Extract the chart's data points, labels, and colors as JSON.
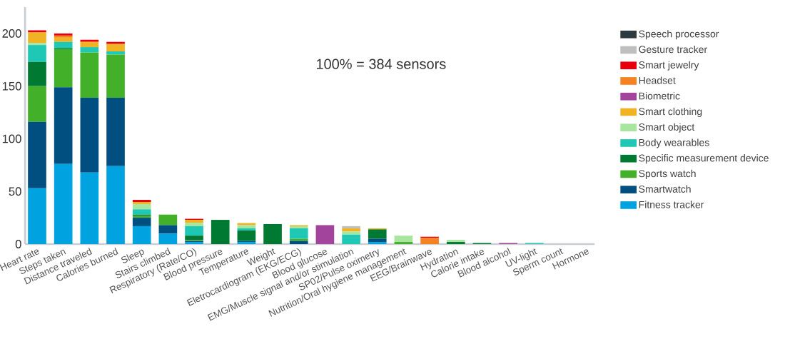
{
  "chart_data": {
    "type": "bar",
    "stacked": true,
    "categories": [
      "Heart rate",
      "Steps taken",
      "Distance traveled",
      "Calories burned",
      "Sleep",
      "Stairs climbed",
      "Respiratory (Rate/CO)",
      "Blood pressure",
      "Temperature",
      "Weight",
      "Eletrocardiogram (EKG/ECG)",
      "Blood glucose",
      "EMG/Muscle signal and/or stimulation",
      "SP02/Pulse oximetry",
      "Nutrition/Oral hygiene management",
      "EEG/Brainwave",
      "Hydration",
      "Calorie intake",
      "Blood alcohol",
      "UV-light",
      "Sperm count",
      "Hormone"
    ],
    "series": [
      {
        "name": "Fitness tracker",
        "color": "#00a3e0",
        "values": [
          53,
          76,
          68,
          74,
          17,
          10,
          2,
          0,
          2,
          0,
          0,
          0,
          0,
          2,
          0,
          0,
          0,
          0,
          0,
          0,
          0,
          0
        ]
      },
      {
        "name": "Smartwatch",
        "color": "#004f80",
        "values": [
          63,
          73,
          71,
          65,
          8,
          8,
          1,
          0,
          1,
          0,
          3,
          0,
          0,
          3,
          0,
          0,
          0,
          0,
          0,
          0,
          0,
          0
        ]
      },
      {
        "name": "Sports watch",
        "color": "#43b02a",
        "values": [
          34,
          36,
          43,
          41,
          2,
          10,
          1,
          0,
          0,
          0,
          2,
          0,
          0,
          0,
          2,
          0,
          0,
          0,
          0,
          0,
          0,
          0
        ]
      },
      {
        "name": "Specific measurement device",
        "color": "#007a33",
        "values": [
          23,
          1,
          0,
          0,
          1,
          0,
          4,
          23,
          10,
          19,
          0,
          0,
          0,
          9,
          0,
          0,
          2,
          1,
          0,
          0,
          0,
          0
        ]
      },
      {
        "name": "Body wearables",
        "color": "#1ec8b4",
        "values": [
          16,
          6,
          5,
          3,
          5,
          0,
          9,
          0,
          2,
          0,
          10,
          0,
          9,
          0,
          0,
          0,
          0,
          0,
          0,
          1,
          0,
          0
        ]
      },
      {
        "name": "Smart object",
        "color": "#a8e6a0",
        "values": [
          2,
          0,
          0,
          0,
          5,
          0,
          3,
          0,
          3,
          0,
          2,
          0,
          3,
          0,
          6,
          0,
          2,
          0,
          0,
          0,
          0,
          0
        ]
      },
      {
        "name": "Smart clothing",
        "color": "#f0b323",
        "values": [
          10,
          4,
          5,
          7,
          2,
          0,
          3,
          0,
          2,
          0,
          1,
          0,
          3,
          1,
          0,
          0,
          0,
          0,
          0,
          0,
          0,
          0
        ]
      },
      {
        "name": "Biometric",
        "color": "#a2449b",
        "values": [
          0,
          0,
          0,
          0,
          0,
          0,
          0,
          0,
          0,
          0,
          0,
          18,
          0,
          0,
          0,
          0,
          0,
          0,
          1,
          0,
          0,
          0
        ]
      },
      {
        "name": "Headset",
        "color": "#f58220",
        "values": [
          0,
          2,
          0,
          0,
          0,
          0,
          0,
          0,
          0,
          0,
          0,
          0,
          0,
          0,
          0,
          6,
          0,
          0,
          0,
          0,
          0,
          0
        ]
      },
      {
        "name": "Smart jewelry",
        "color": "#e8000d",
        "values": [
          2,
          2,
          2,
          2,
          2,
          0,
          1,
          0,
          0,
          0,
          0,
          0,
          0,
          0,
          0,
          1,
          0,
          0,
          0,
          0,
          0,
          0
        ]
      },
      {
        "name": "Gesture tracker",
        "color": "#bfbfbf",
        "values": [
          0,
          0,
          0,
          0,
          0,
          0,
          0,
          0,
          0,
          0,
          0,
          0,
          2,
          0,
          0,
          0,
          0,
          0,
          0,
          0,
          0,
          0
        ]
      },
      {
        "name": "Speech processor",
        "color": "#2d3a40",
        "values": [
          0,
          0,
          0,
          0,
          0,
          0,
          0,
          0,
          0,
          0,
          0,
          0,
          0,
          0,
          0,
          0,
          0,
          0,
          0,
          0,
          0,
          0
        ]
      }
    ],
    "ylim": [
      0,
      225
    ],
    "yticks": [
      0,
      50,
      100,
      150,
      200
    ],
    "legend": "right",
    "annotations": [
      "100% = 384 sensors"
    ]
  }
}
